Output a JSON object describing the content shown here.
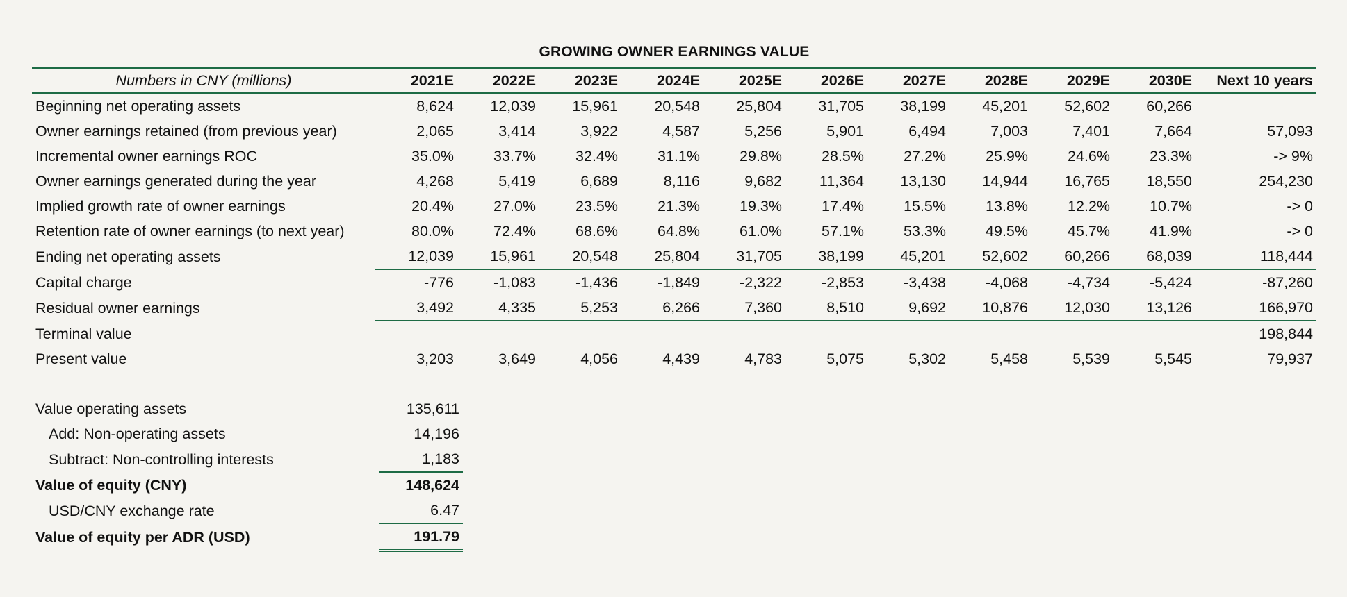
{
  "title": "GROWING OWNER EARNINGS VALUE",
  "header": {
    "label": "Numbers in CNY (millions)",
    "columns": [
      "2021E",
      "2022E",
      "2023E",
      "2024E",
      "2025E",
      "2026E",
      "2027E",
      "2028E",
      "2029E",
      "2030E",
      "Next 10 years"
    ]
  },
  "rows": [
    {
      "label": "Beginning net operating assets",
      "values": [
        "8,624",
        "12,039",
        "15,961",
        "20,548",
        "25,804",
        "31,705",
        "38,199",
        "45,201",
        "52,602",
        "60,266",
        ""
      ]
    },
    {
      "label": "Owner earnings retained (from previous year)",
      "values": [
        "2,065",
        "3,414",
        "3,922",
        "4,587",
        "5,256",
        "5,901",
        "6,494",
        "7,003",
        "7,401",
        "7,664",
        "57,093"
      ]
    },
    {
      "label": "Incremental owner earnings ROC",
      "values": [
        "35.0%",
        "33.7%",
        "32.4%",
        "31.1%",
        "29.8%",
        "28.5%",
        "27.2%",
        "25.9%",
        "24.6%",
        "23.3%",
        "-> 9%"
      ]
    },
    {
      "label": "Owner earnings generated during the year",
      "values": [
        "4,268",
        "5,419",
        "6,689",
        "8,116",
        "9,682",
        "11,364",
        "13,130",
        "14,944",
        "16,765",
        "18,550",
        "254,230"
      ]
    },
    {
      "label": "Implied growth rate of owner earnings",
      "values": [
        "20.4%",
        "27.0%",
        "23.5%",
        "21.3%",
        "19.3%",
        "17.4%",
        "15.5%",
        "13.8%",
        "12.2%",
        "10.7%",
        "-> 0"
      ]
    },
    {
      "label": "Retention rate of owner earnings (to next year)",
      "values": [
        "80.0%",
        "72.4%",
        "68.6%",
        "64.8%",
        "61.0%",
        "57.1%",
        "53.3%",
        "49.5%",
        "45.7%",
        "41.9%",
        "-> 0"
      ]
    },
    {
      "label": "Ending net operating assets",
      "values": [
        "12,039",
        "15,961",
        "20,548",
        "25,804",
        "31,705",
        "38,199",
        "45,201",
        "52,602",
        "60,266",
        "68,039",
        "118,444"
      ]
    },
    {
      "label": "Capital charge",
      "values": [
        "-776",
        "-1,083",
        "-1,436",
        "-1,849",
        "-2,322",
        "-2,853",
        "-3,438",
        "-4,068",
        "-4,734",
        "-5,424",
        "-87,260"
      ]
    },
    {
      "label": "Residual owner earnings",
      "values": [
        "3,492",
        "4,335",
        "5,253",
        "6,266",
        "7,360",
        "8,510",
        "9,692",
        "10,876",
        "12,030",
        "13,126",
        "166,970"
      ]
    },
    {
      "label": "Terminal value",
      "values": [
        "",
        "",
        "",
        "",
        "",
        "",
        "",
        "",
        "",
        "",
        "198,844"
      ]
    },
    {
      "label": "Present value",
      "values": [
        "3,203",
        "3,649",
        "4,056",
        "4,439",
        "4,783",
        "5,075",
        "5,302",
        "5,458",
        "5,539",
        "5,545",
        "79,937"
      ]
    }
  ],
  "valuation": [
    {
      "label": "Value operating assets",
      "value": "135,611"
    },
    {
      "label": "Add: Non-operating assets",
      "value": "14,196"
    },
    {
      "label": "Subtract: Non-controlling interests",
      "value": "1,183"
    },
    {
      "label": "Value of equity (CNY)",
      "value": "148,624"
    },
    {
      "label": "USD/CNY exchange rate",
      "value": "6.47"
    },
    {
      "label": "Value of equity per ADR (USD)",
      "value": "191.79"
    }
  ],
  "colors": {
    "rule": "#1d6b45",
    "background": "#f5f4f0",
    "text": "#111111"
  }
}
